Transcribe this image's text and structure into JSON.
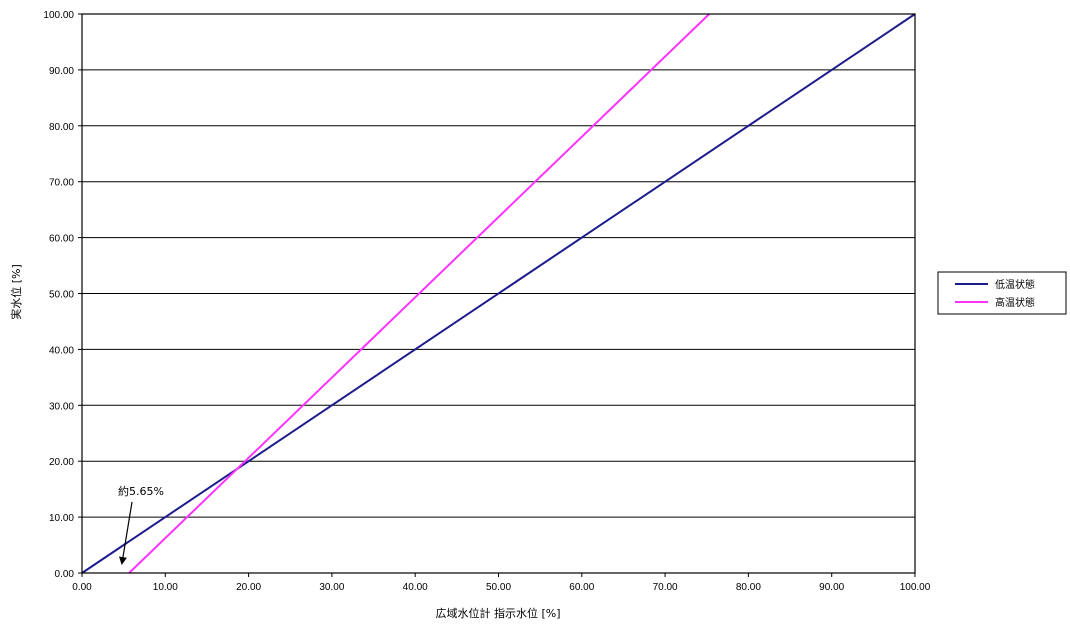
{
  "chart_data": {
    "type": "line",
    "title": "",
    "xlabel": "広域水位計 指示水位 [%]",
    "ylabel": "実水位 [%]",
    "xlim": [
      0,
      100
    ],
    "ylim": [
      0,
      100
    ],
    "xticks": [
      "0.00",
      "10.00",
      "20.00",
      "30.00",
      "40.00",
      "50.00",
      "60.00",
      "70.00",
      "80.00",
      "90.00",
      "100.00"
    ],
    "yticks": [
      "0.00",
      "10.00",
      "20.00",
      "30.00",
      "40.00",
      "50.00",
      "60.00",
      "70.00",
      "80.00",
      "90.00",
      "100.00"
    ],
    "grid": "horizontal",
    "legend_position": "right",
    "series": [
      {
        "name": "低温状態",
        "color": "#1c1c8c",
        "x": [
          0,
          100
        ],
        "y": [
          0,
          100
        ]
      },
      {
        "name": "高温状態",
        "color": "#ff33ff",
        "x": [
          5.65,
          75.3
        ],
        "y": [
          0,
          100
        ]
      }
    ],
    "annotations": [
      {
        "text": "約5.65%",
        "points_to_x": 5.65,
        "points_to_y": 0
      }
    ]
  }
}
